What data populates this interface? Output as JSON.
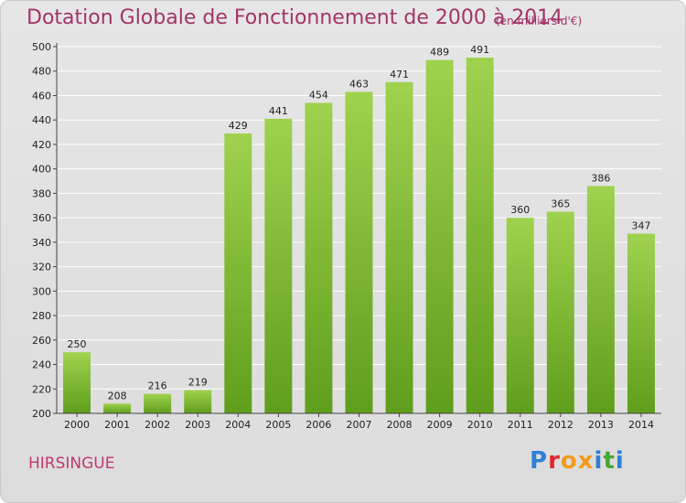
{
  "header": {
    "title": "Dotation Globale de Fonctionnement de 2000 à 2014",
    "subtitle": "(en milliers d'€)"
  },
  "footer": {
    "commune": "HIRSINGUE",
    "logo_letters": [
      "P",
      "r",
      "o",
      "x",
      "i",
      "t",
      "i"
    ]
  },
  "colors": {
    "title": "#a23566",
    "bar_light": "#9fd24e",
    "bar_dark": "#5f9e1c",
    "logo": [
      "#2f7fd6",
      "#e3262a",
      "#f39a1c",
      "#f39a1c",
      "#2f7fd6",
      "#46a832",
      "#2f7fd6"
    ]
  },
  "chart_data": {
    "type": "bar",
    "categories": [
      "2000",
      "2001",
      "2002",
      "2003",
      "2004",
      "2005",
      "2006",
      "2007",
      "2008",
      "2009",
      "2010",
      "2011",
      "2012",
      "2013",
      "2014"
    ],
    "values": [
      250,
      208,
      216,
      219,
      429,
      441,
      454,
      463,
      471,
      489,
      491,
      360,
      365,
      386,
      347
    ],
    "ylim": [
      200,
      500
    ],
    "yticks": [
      200,
      220,
      240,
      260,
      280,
      300,
      320,
      340,
      360,
      380,
      400,
      420,
      440,
      460,
      480,
      500
    ],
    "grid": true,
    "title": "Dotation Globale de Fonctionnement de 2000 à 2014",
    "xlabel": "",
    "ylabel": ""
  }
}
